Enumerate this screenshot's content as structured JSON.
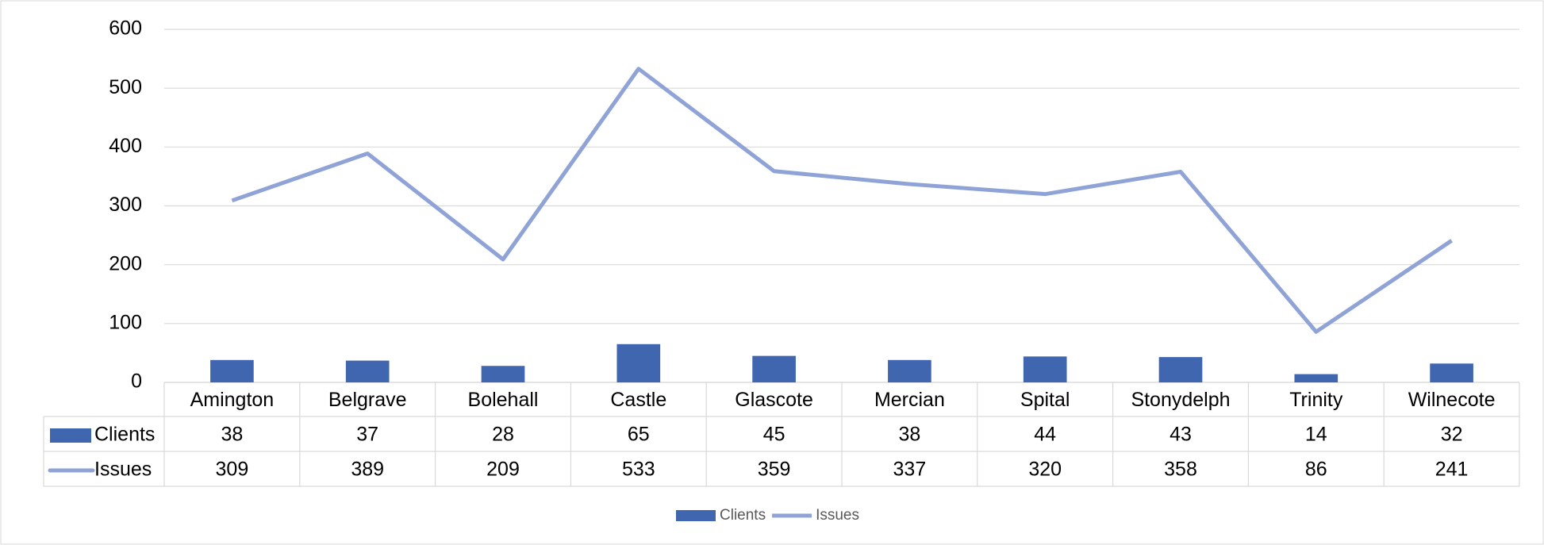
{
  "chart_data": {
    "type": "bar-line",
    "categories": [
      "Amington",
      "Belgrave",
      "Bolehall",
      "Castle",
      "Glascote",
      "Mercian",
      "Spital",
      "Stonydelph",
      "Trinity",
      "Wilnecote"
    ],
    "series": [
      {
        "name": "Clients",
        "type": "bar",
        "color": "#4066b0",
        "values": [
          38,
          37,
          28,
          65,
          45,
          38,
          44,
          43,
          14,
          32
        ]
      },
      {
        "name": "Issues",
        "type": "line",
        "color": "#8fa3d6",
        "values": [
          309,
          389,
          209,
          533,
          359,
          337,
          320,
          358,
          86,
          241
        ]
      }
    ],
    "ylim": [
      0,
      600
    ],
    "yticks": [
      0,
      100,
      200,
      300,
      400,
      500,
      600
    ],
    "grid": true,
    "legend": "bottom"
  }
}
